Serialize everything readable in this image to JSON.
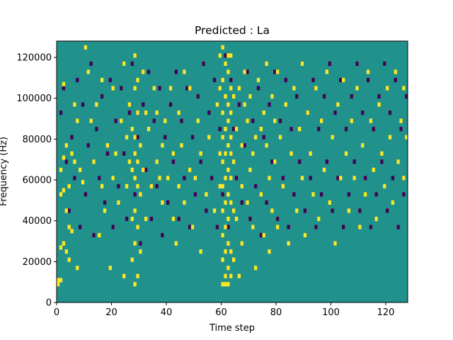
{
  "chart_data": {
    "type": "heatmap",
    "title": "Predicted : La",
    "xlabel": "Time step",
    "ylabel": "Frequency (Hz)",
    "xlim": [
      0,
      128
    ],
    "ylim": [
      0,
      128000
    ],
    "x_ticks": [
      0,
      20,
      40,
      60,
      80,
      100,
      120
    ],
    "y_ticks": [
      0,
      20000,
      40000,
      60000,
      80000,
      100000,
      120000
    ],
    "x_tick_labels": [
      "0",
      "20",
      "40",
      "60",
      "80",
      "100",
      "120"
    ],
    "y_tick_labels": [
      "0",
      "20000",
      "40000",
      "60000",
      "80000",
      "100000",
      "120000"
    ],
    "grid": false,
    "legend": "none",
    "n_time_steps": 128,
    "n_freq_bins": 64,
    "colormap": {
      "low": "#440154",
      "mid": "#21918c",
      "high": "#fde725"
    },
    "background_level": "mid",
    "high_cells": [
      [
        0,
        4
      ],
      [
        0,
        5
      ],
      [
        1,
        5
      ],
      [
        1,
        13
      ],
      [
        1,
        26
      ],
      [
        1,
        32
      ],
      [
        2,
        14
      ],
      [
        2,
        27
      ],
      [
        2,
        35
      ],
      [
        2,
        53
      ],
      [
        3,
        12
      ],
      [
        3,
        22
      ],
      [
        3,
        38
      ],
      [
        4,
        10
      ],
      [
        4,
        18
      ],
      [
        4,
        28
      ],
      [
        5,
        17
      ],
      [
        5,
        36
      ],
      [
        6,
        34
      ],
      [
        6,
        48
      ],
      [
        7,
        8
      ],
      [
        7,
        44
      ],
      [
        8,
        32
      ],
      [
        9,
        29
      ],
      [
        10,
        62
      ],
      [
        11,
        56
      ],
      [
        12,
        44
      ],
      [
        13,
        34
      ],
      [
        14,
        48
      ],
      [
        15,
        16
      ],
      [
        16,
        28
      ],
      [
        16,
        54
      ],
      [
        17,
        22
      ],
      [
        18,
        38
      ],
      [
        19,
        8
      ],
      [
        20,
        30
      ],
      [
        20,
        52
      ],
      [
        21,
        36
      ],
      [
        22,
        24
      ],
      [
        23,
        44
      ],
      [
        24,
        6
      ],
      [
        24,
        58
      ],
      [
        25,
        28
      ],
      [
        25,
        40
      ],
      [
        26,
        34
      ],
      [
        26,
        48
      ],
      [
        27,
        10
      ],
      [
        27,
        20
      ],
      [
        27,
        32
      ],
      [
        27,
        42
      ],
      [
        28,
        4
      ],
      [
        28,
        14
      ],
      [
        28,
        22
      ],
      [
        28,
        30
      ],
      [
        28,
        36
      ],
      [
        28,
        40
      ],
      [
        28,
        52
      ],
      [
        28,
        60
      ],
      [
        29,
        6
      ],
      [
        29,
        18
      ],
      [
        29,
        28
      ],
      [
        29,
        34
      ],
      [
        29,
        46
      ],
      [
        29,
        54
      ],
      [
        30,
        12
      ],
      [
        30,
        26
      ],
      [
        30,
        38
      ],
      [
        31,
        32
      ],
      [
        31,
        56
      ],
      [
        32,
        20
      ],
      [
        32,
        46
      ],
      [
        33,
        42
      ],
      [
        34,
        28
      ],
      [
        35,
        52
      ],
      [
        36,
        34
      ],
      [
        36,
        46
      ],
      [
        37,
        30
      ],
      [
        38,
        24
      ],
      [
        38,
        38
      ],
      [
        39,
        44
      ],
      [
        40,
        30
      ],
      [
        41,
        52
      ],
      [
        42,
        20
      ],
      [
        42,
        36
      ],
      [
        43,
        14
      ],
      [
        44,
        28
      ],
      [
        44,
        46
      ],
      [
        45,
        38
      ],
      [
        46,
        24
      ],
      [
        46,
        56
      ],
      [
        48,
        32
      ],
      [
        48,
        52
      ],
      [
        49,
        18
      ],
      [
        50,
        30
      ],
      [
        51,
        44
      ],
      [
        52,
        12
      ],
      [
        52,
        36
      ],
      [
        54,
        26
      ],
      [
        55,
        40
      ],
      [
        57,
        22
      ],
      [
        58,
        48
      ],
      [
        59,
        28
      ],
      [
        59,
        36
      ],
      [
        59,
        52
      ],
      [
        59,
        60
      ],
      [
        60,
        4
      ],
      [
        60,
        10
      ],
      [
        60,
        16
      ],
      [
        60,
        22
      ],
      [
        60,
        28
      ],
      [
        60,
        34
      ],
      [
        60,
        40
      ],
      [
        60,
        46
      ],
      [
        60,
        54
      ],
      [
        60,
        62
      ],
      [
        61,
        4
      ],
      [
        61,
        6
      ],
      [
        61,
        12
      ],
      [
        61,
        18
      ],
      [
        61,
        24
      ],
      [
        61,
        30
      ],
      [
        61,
        36
      ],
      [
        61,
        42
      ],
      [
        61,
        50
      ],
      [
        61,
        58
      ],
      [
        62,
        4
      ],
      [
        62,
        8
      ],
      [
        62,
        14
      ],
      [
        62,
        20
      ],
      [
        62,
        26
      ],
      [
        62,
        32
      ],
      [
        62,
        38
      ],
      [
        62,
        44
      ],
      [
        62,
        48
      ],
      [
        62,
        56
      ],
      [
        62,
        60
      ],
      [
        63,
        6
      ],
      [
        63,
        12
      ],
      [
        63,
        24
      ],
      [
        63,
        30
      ],
      [
        63,
        36
      ],
      [
        63,
        40
      ],
      [
        63,
        46
      ],
      [
        63,
        52
      ],
      [
        63,
        60
      ],
      [
        64,
        10
      ],
      [
        64,
        22
      ],
      [
        64,
        34
      ],
      [
        64,
        50
      ],
      [
        65,
        20
      ],
      [
        65,
        42
      ],
      [
        66,
        6
      ],
      [
        66,
        52
      ],
      [
        67,
        14
      ],
      [
        67,
        28
      ],
      [
        67,
        38
      ],
      [
        68,
        48
      ],
      [
        68,
        56
      ],
      [
        69,
        24
      ],
      [
        69,
        44
      ],
      [
        70,
        32
      ],
      [
        70,
        50
      ],
      [
        71,
        18
      ],
      [
        71,
        36
      ],
      [
        72,
        8
      ],
      [
        72,
        40
      ],
      [
        73,
        54
      ],
      [
        74,
        26
      ],
      [
        74,
        42
      ],
      [
        75,
        16
      ],
      [
        75,
        46
      ],
      [
        76,
        38
      ],
      [
        76,
        58
      ],
      [
        77,
        12
      ],
      [
        77,
        30
      ],
      [
        78,
        22
      ],
      [
        78,
        50
      ],
      [
        79,
        34
      ],
      [
        79,
        44
      ],
      [
        80,
        18
      ],
      [
        80,
        56
      ],
      [
        81,
        40
      ],
      [
        82,
        28
      ],
      [
        83,
        48
      ],
      [
        84,
        14
      ],
      [
        85,
        36
      ],
      [
        86,
        52
      ],
      [
        87,
        22
      ],
      [
        88,
        42
      ],
      [
        89,
        30
      ],
      [
        89,
        58
      ],
      [
        90,
        16
      ],
      [
        91,
        46
      ],
      [
        92,
        36
      ],
      [
        93,
        26
      ],
      [
        94,
        52
      ],
      [
        95,
        20
      ],
      [
        96,
        44
      ],
      [
        97,
        32
      ],
      [
        98,
        56
      ],
      [
        99,
        24
      ],
      [
        100,
        40
      ],
      [
        101,
        14
      ],
      [
        102,
        48
      ],
      [
        103,
        30
      ],
      [
        104,
        54
      ],
      [
        105,
        36
      ],
      [
        106,
        22
      ],
      [
        107,
        44
      ],
      [
        108,
        30
      ],
      [
        109,
        52
      ],
      [
        110,
        18
      ],
      [
        111,
        38
      ],
      [
        112,
        26
      ],
      [
        113,
        56
      ],
      [
        114,
        44
      ],
      [
        115,
        32
      ],
      [
        116,
        20
      ],
      [
        117,
        48
      ],
      [
        118,
        36
      ],
      [
        119,
        28
      ],
      [
        120,
        52
      ],
      [
        121,
        40
      ],
      [
        122,
        24
      ],
      [
        123,
        56
      ],
      [
        124,
        34
      ],
      [
        125,
        44
      ],
      [
        126,
        30
      ],
      [
        126,
        52
      ],
      [
        127,
        40
      ]
    ],
    "low_cells": [
      [
        1,
        46
      ],
      [
        2,
        52
      ],
      [
        3,
        34
      ],
      [
        4,
        22
      ],
      [
        5,
        40
      ],
      [
        6,
        30
      ],
      [
        7,
        54
      ],
      [
        8,
        18
      ],
      [
        9,
        48
      ],
      [
        10,
        26
      ],
      [
        11,
        38
      ],
      [
        12,
        58
      ],
      [
        13,
        16
      ],
      [
        14,
        42
      ],
      [
        15,
        30
      ],
      [
        16,
        50
      ],
      [
        17,
        24
      ],
      [
        18,
        36
      ],
      [
        19,
        54
      ],
      [
        20,
        18
      ],
      [
        21,
        44
      ],
      [
        22,
        28
      ],
      [
        23,
        52
      ],
      [
        24,
        36
      ],
      [
        25,
        20
      ],
      [
        26,
        46
      ],
      [
        27,
        58
      ],
      [
        28,
        26
      ],
      [
        29,
        40
      ],
      [
        30,
        14
      ],
      [
        31,
        48
      ],
      [
        32,
        32
      ],
      [
        33,
        56
      ],
      [
        34,
        20
      ],
      [
        35,
        44
      ],
      [
        36,
        28
      ],
      [
        37,
        52
      ],
      [
        38,
        16
      ],
      [
        39,
        40
      ],
      [
        40,
        24
      ],
      [
        41,
        48
      ],
      [
        42,
        34
      ],
      [
        43,
        56
      ],
      [
        44,
        20
      ],
      [
        45,
        44
      ],
      [
        46,
        30
      ],
      [
        47,
        52
      ],
      [
        48,
        18
      ],
      [
        49,
        40
      ],
      [
        50,
        26
      ],
      [
        51,
        50
      ],
      [
        52,
        34
      ],
      [
        53,
        58
      ],
      [
        54,
        22
      ],
      [
        55,
        46
      ],
      [
        56,
        30
      ],
      [
        57,
        54
      ],
      [
        58,
        18
      ],
      [
        59,
        42
      ],
      [
        60,
        26
      ],
      [
        61,
        60
      ],
      [
        62,
        18
      ],
      [
        63,
        54
      ],
      [
        64,
        42
      ],
      [
        65,
        30
      ],
      [
        66,
        48
      ],
      [
        67,
        24
      ],
      [
        68,
        38
      ],
      [
        69,
        56
      ],
      [
        70,
        20
      ],
      [
        71,
        44
      ],
      [
        72,
        28
      ],
      [
        73,
        52
      ],
      [
        74,
        16
      ],
      [
        75,
        40
      ],
      [
        76,
        24
      ],
      [
        77,
        48
      ],
      [
        78,
        34
      ],
      [
        79,
        56
      ],
      [
        80,
        20
      ],
      [
        81,
        44
      ],
      [
        82,
        30
      ],
      [
        83,
        54
      ],
      [
        84,
        18
      ],
      [
        85,
        42
      ],
      [
        86,
        26
      ],
      [
        87,
        50
      ],
      [
        88,
        34
      ],
      [
        89,
        58
      ],
      [
        90,
        22
      ],
      [
        91,
        46
      ],
      [
        92,
        30
      ],
      [
        93,
        54
      ],
      [
        94,
        18
      ],
      [
        95,
        42
      ],
      [
        96,
        26
      ],
      [
        97,
        50
      ],
      [
        98,
        34
      ],
      [
        99,
        58
      ],
      [
        100,
        22
      ],
      [
        101,
        46
      ],
      [
        102,
        30
      ],
      [
        103,
        54
      ],
      [
        104,
        18
      ],
      [
        105,
        42
      ],
      [
        106,
        26
      ],
      [
        107,
        50
      ],
      [
        108,
        34
      ],
      [
        109,
        58
      ],
      [
        110,
        22
      ],
      [
        111,
        46
      ],
      [
        112,
        30
      ],
      [
        113,
        54
      ],
      [
        114,
        18
      ],
      [
        115,
        42
      ],
      [
        116,
        26
      ],
      [
        117,
        50
      ],
      [
        118,
        34
      ],
      [
        119,
        58
      ],
      [
        120,
        22
      ],
      [
        121,
        46
      ],
      [
        122,
        30
      ],
      [
        123,
        54
      ],
      [
        124,
        18
      ],
      [
        125,
        42
      ],
      [
        126,
        26
      ],
      [
        127,
        50
      ]
    ]
  }
}
